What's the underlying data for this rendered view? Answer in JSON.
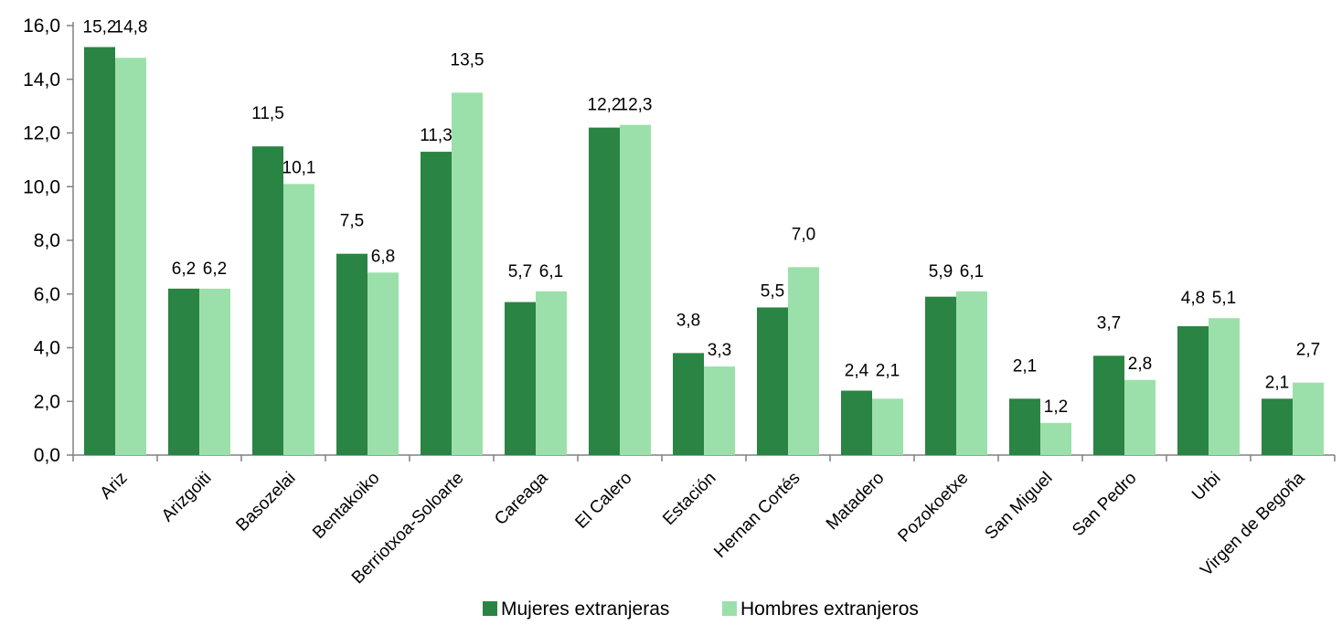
{
  "chart_data": {
    "type": "bar",
    "categories": [
      "Ariz",
      "Arizgoiti",
      "Basozelai",
      "Bentakoiko",
      "Berriotxoa-Soloarte",
      "Careaga",
      "El Calero",
      "Estación",
      "Hernan Cortés",
      "Matadero",
      "Pozokoetxe",
      "San Miguel",
      "San Pedro",
      "Urbi",
      "Virgen de Begoña"
    ],
    "series": [
      {
        "name": "Mujeres extranjeras",
        "color": "#2a8444",
        "values": [
          15.2,
          6.2,
          11.5,
          7.5,
          11.3,
          5.7,
          12.2,
          3.8,
          5.5,
          2.4,
          5.9,
          2.1,
          3.7,
          4.8,
          2.1
        ],
        "labels": [
          "15,2",
          "6,2",
          "11,5",
          "7,5",
          "11,3",
          "5,7",
          "12,2",
          "3,8",
          "5,5",
          "2,4",
          "5,9",
          "2,1",
          "3,7",
          "4,8",
          "2,1"
        ]
      },
      {
        "name": "Hombres extranjeros",
        "color": "#9be0aa",
        "values": [
          14.8,
          6.2,
          10.1,
          6.8,
          13.5,
          6.1,
          12.3,
          3.3,
          7.0,
          2.1,
          6.1,
          1.2,
          2.8,
          5.1,
          2.7
        ],
        "labels": [
          "14,8",
          "6,2",
          "10,1",
          "6,8",
          "13,5",
          "6,1",
          "12,3",
          "3,3",
          "7,0",
          "2,1",
          "6,1",
          "1,2",
          "2,8",
          "5,1",
          "2,7"
        ]
      }
    ],
    "ylim": [
      0,
      16
    ],
    "yticks": [
      "0,0",
      "2,0",
      "4,0",
      "6,0",
      "8,0",
      "10,0",
      "12,0",
      "14,0",
      "16,0"
    ],
    "ytick_values": [
      0,
      2,
      4,
      6,
      8,
      10,
      12,
      14,
      16
    ],
    "xlabel": "",
    "ylabel": "",
    "grid": false,
    "legend_position": "bottom"
  }
}
